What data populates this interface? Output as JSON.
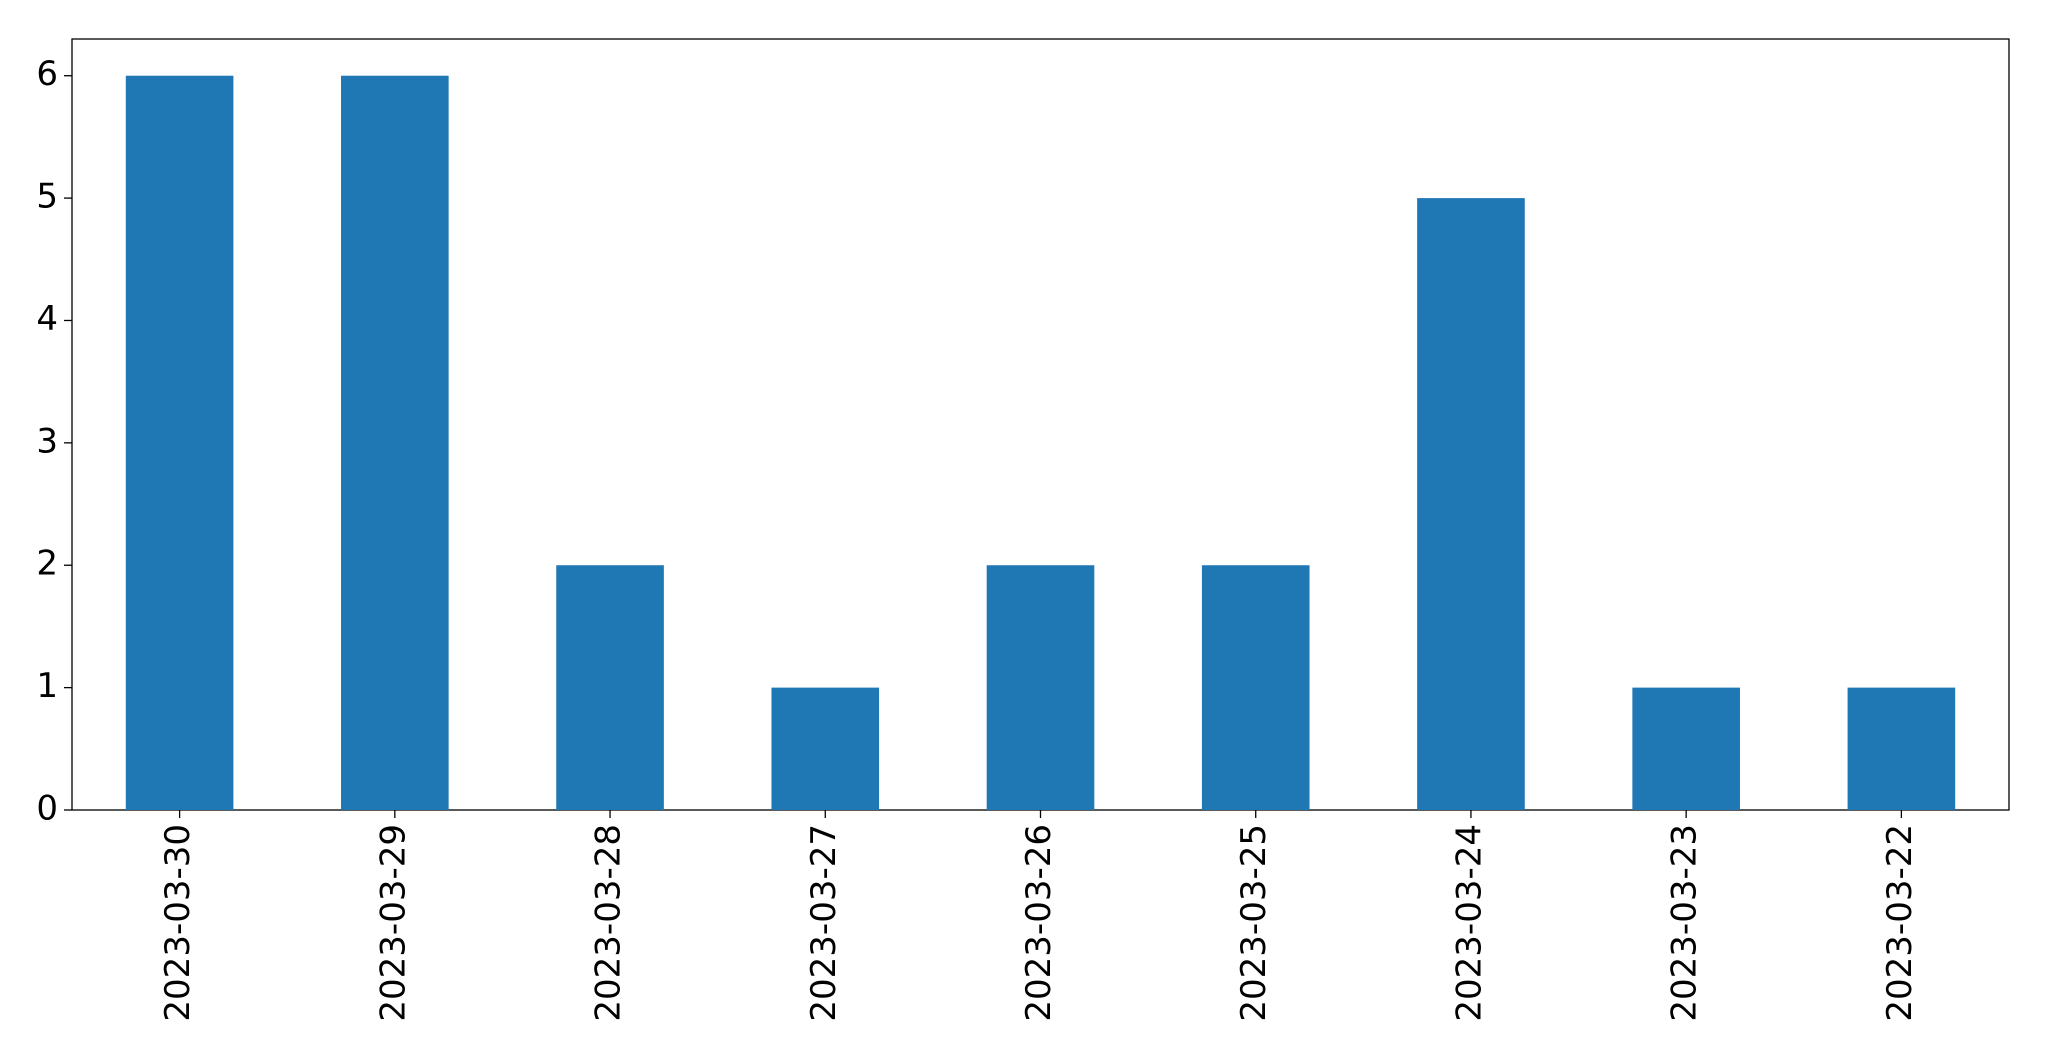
{
  "chart_data": {
    "type": "bar",
    "categories": [
      "2023-03-30",
      "2023-03-29",
      "2023-03-28",
      "2023-03-27",
      "2023-03-26",
      "2023-03-25",
      "2023-03-24",
      "2023-03-23",
      "2023-03-22"
    ],
    "values": [
      6,
      6,
      2,
      1,
      2,
      2,
      5,
      1,
      1
    ],
    "color": "#1f77b4",
    "ylim": [
      0,
      6.3
    ],
    "yticks": [
      0,
      1,
      2,
      3,
      4,
      5,
      6
    ],
    "grid": false
  }
}
